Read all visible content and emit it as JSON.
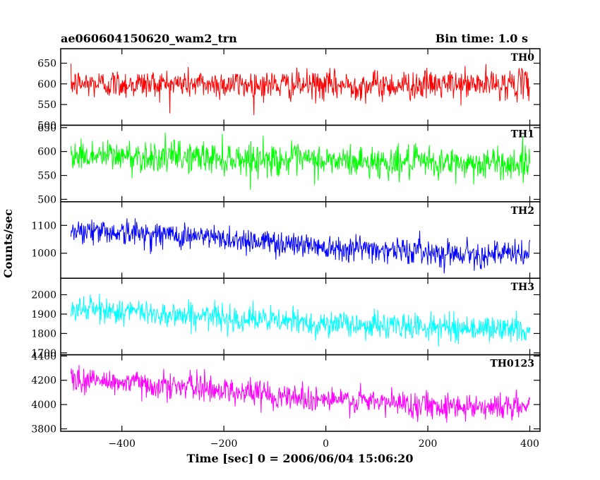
{
  "header": {
    "title": "ae060604150620_wam2_trn",
    "bin_time": "Bin time: 1.0 s"
  },
  "chart_data": {
    "type": "line",
    "xlabel": "Time [sec] 0 = 2006/06/04 15:06:20",
    "ylabel": "Counts/sec",
    "xlim": [
      -520,
      420
    ],
    "data_x_range": [
      -500,
      400
    ],
    "bin_time_sec": 1.0,
    "x_ticks": [
      -400,
      -200,
      0,
      200,
      400
    ],
    "x_tick_labels": [
      "−400",
      "−200",
      "0",
      "200",
      "400"
    ],
    "panels": [
      {
        "name": "TH0",
        "color": "#ff0000",
        "ylim": [
          500,
          685
        ],
        "y_ticks": [
          500,
          550,
          600,
          650
        ],
        "y_tick_labels": [
          "500",
          "550",
          "600",
          "650"
        ],
        "x_anchor": [
          -500,
          -250,
          0,
          250,
          400
        ],
        "mean_anchor": [
          600,
          600,
          596,
          598,
          600
        ],
        "noise_amp": 42
      },
      {
        "name": "TH1",
        "color": "#00ff00",
        "ylim": [
          495,
          655
        ],
        "y_ticks": [
          500,
          550,
          600,
          650
        ],
        "y_tick_labels": [
          "500",
          "550",
          "600",
          "650"
        ],
        "x_anchor": [
          -500,
          -250,
          0,
          250,
          400
        ],
        "mean_anchor": [
          592,
          588,
          580,
          575,
          575
        ],
        "noise_amp": 40
      },
      {
        "name": "TH2",
        "color": "#0000ff",
        "ylim": [
          910,
          1185
        ],
        "y_ticks": [
          1000,
          1100
        ],
        "y_tick_labels": [
          "1000",
          "1100"
        ],
        "x_anchor": [
          -500,
          -250,
          0,
          250,
          400
        ],
        "mean_anchor": [
          1085,
          1060,
          1025,
          1000,
          995
        ],
        "noise_amp": 55
      },
      {
        "name": "TH3",
        "color": "#00ffff",
        "ylim": [
          1690,
          2085
        ],
        "y_ticks": [
          1700,
          1800,
          1900,
          2000
        ],
        "y_tick_labels": [
          "1700",
          "1800",
          "1900",
          "2000"
        ],
        "x_anchor": [
          -500,
          -250,
          0,
          250,
          400
        ],
        "mean_anchor": [
          1930,
          1890,
          1850,
          1830,
          1820
        ],
        "noise_amp": 80
      },
      {
        "name": "TH0123",
        "color": "#ff00ff",
        "ylim": [
          3780,
          4410
        ],
        "y_ticks": [
          3800,
          4000,
          4200,
          4400
        ],
        "y_tick_labels": [
          "3800",
          "4000",
          "4200",
          "4400"
        ],
        "x_anchor": [
          -500,
          -250,
          0,
          250,
          400
        ],
        "mean_anchor": [
          4210,
          4140,
          4040,
          3990,
          3980
        ],
        "noise_amp": 130
      }
    ]
  }
}
